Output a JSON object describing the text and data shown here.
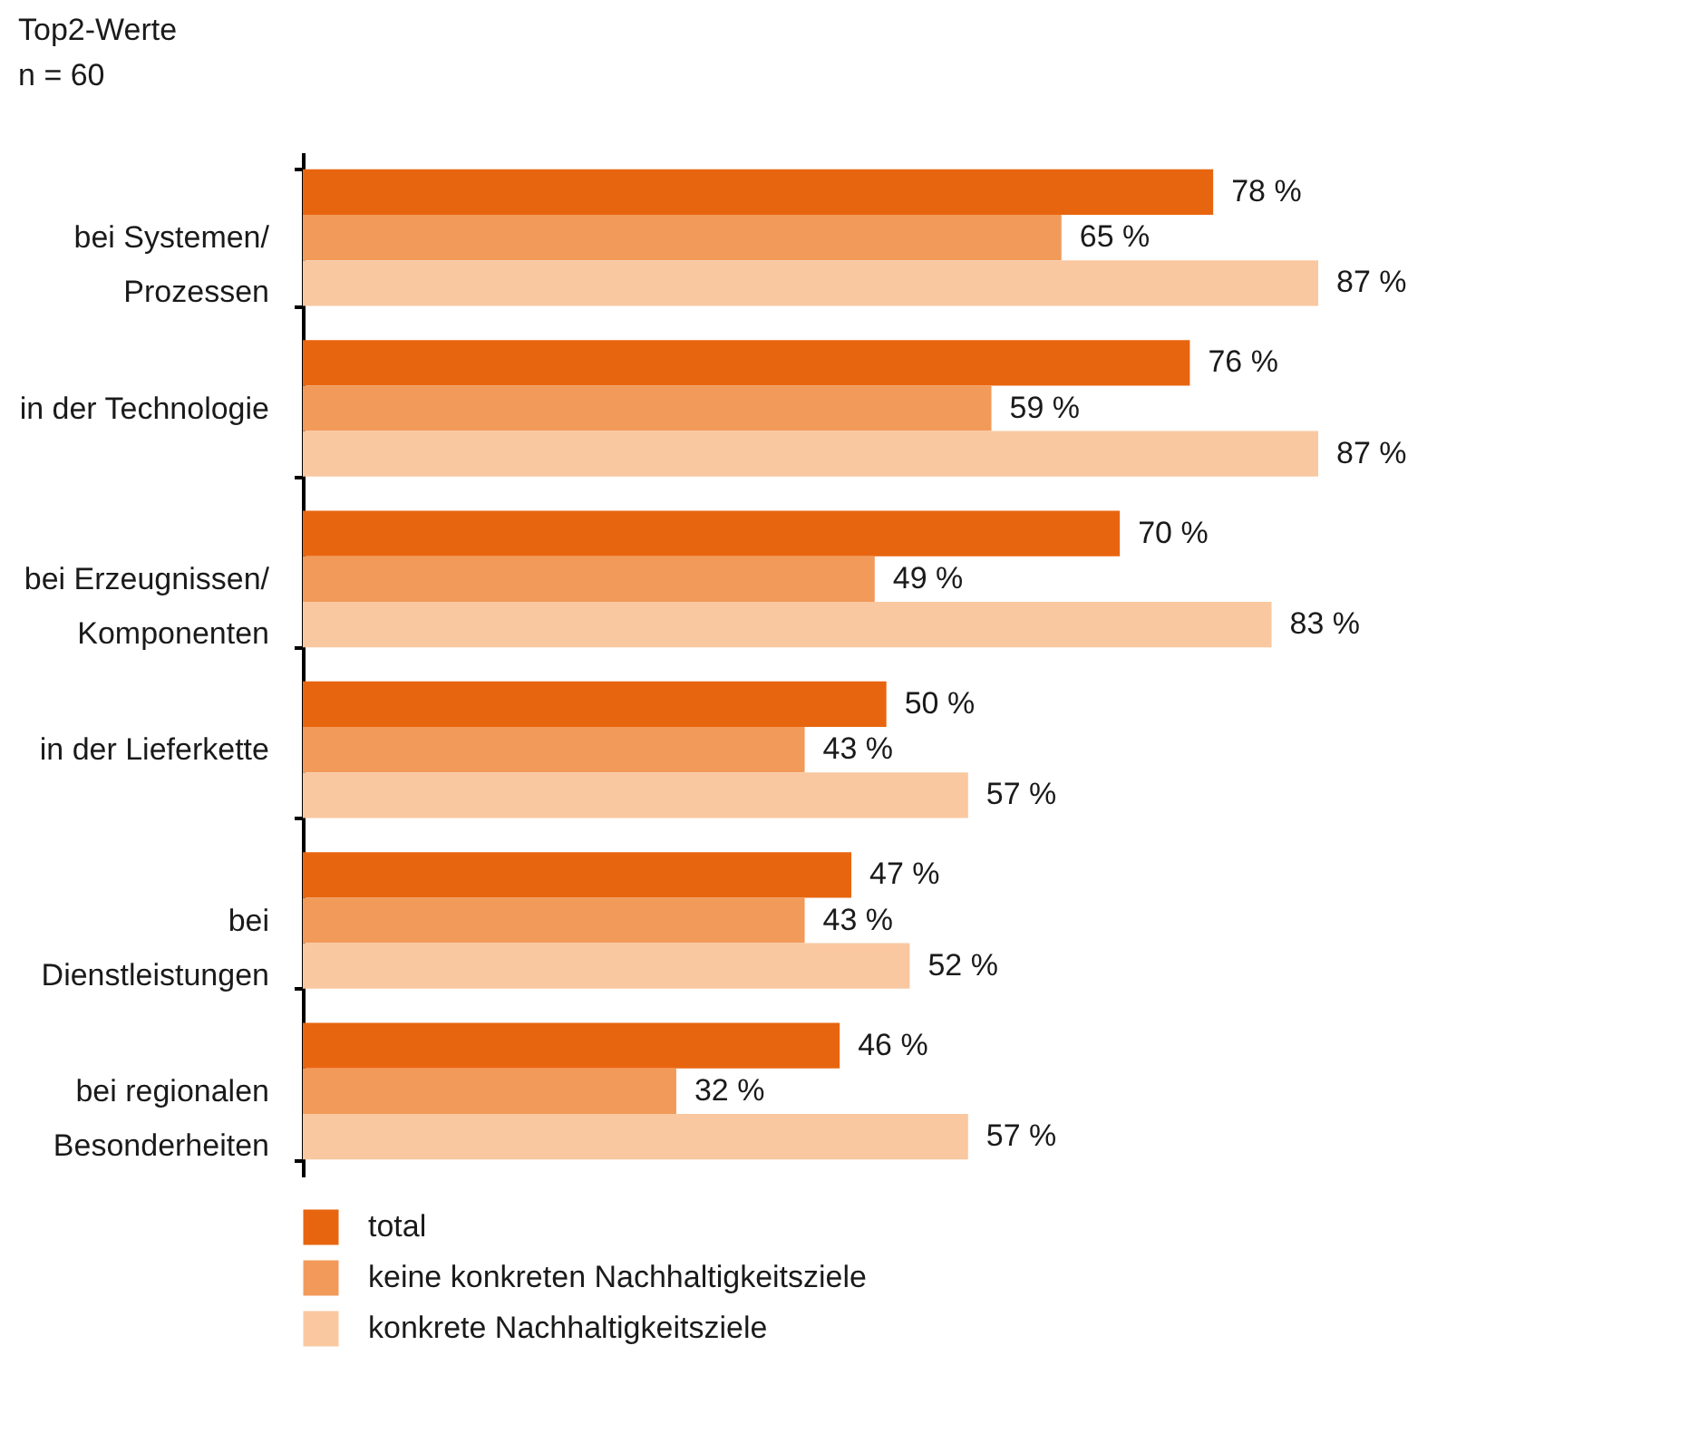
{
  "chart_data": {
    "type": "bar",
    "orientation": "horizontal",
    "title": "Top2-Werte",
    "subtitle": "n = 60",
    "categories": [
      "bei Systemen/\nProzessen",
      "in der Technologie",
      "bei Erzeugnissen/\nKomponenten",
      "in der Lieferkette",
      "bei\nDienstleistungen",
      "bei regionalen\nBesonderheiten"
    ],
    "series": [
      {
        "name": "total",
        "color": "#e8650f",
        "values": [
          78,
          76,
          70,
          50,
          47,
          46
        ],
        "value_labels": [
          "78 %",
          "76 %",
          "70 %",
          "50 %",
          "47 %",
          "46 %"
        ]
      },
      {
        "name": "keine konkreten Nachhaltigkeitsziele",
        "color": "#f29a5a",
        "values": [
          65,
          59,
          49,
          43,
          43,
          32
        ],
        "value_labels": [
          "65 %",
          "59 %",
          "49 %",
          "43 %",
          "43 %",
          "32 %"
        ]
      },
      {
        "name": "konkrete Nachhaltigkeitsziele",
        "color": "#f9c8a0",
        "values": [
          87,
          87,
          83,
          57,
          52,
          57
        ],
        "value_labels": [
          "87 %",
          "87 %",
          "83 %",
          "57 %",
          "52 %",
          "57 %"
        ]
      }
    ],
    "legend": "bottom left"
  }
}
